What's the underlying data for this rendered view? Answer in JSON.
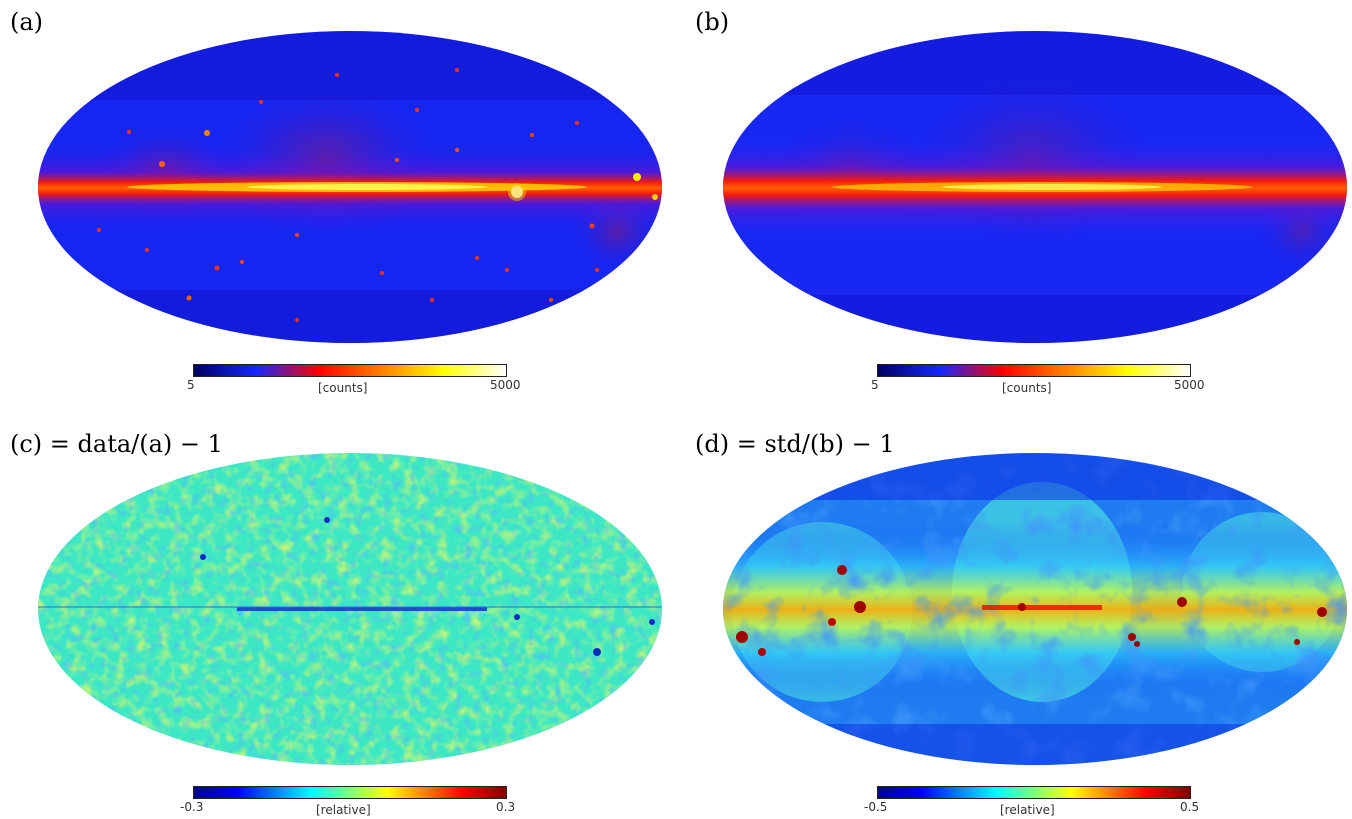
{
  "panels": {
    "a": {
      "title": "(a)",
      "colorbar": {
        "min": "5",
        "max": "5000",
        "unit": "[counts]",
        "scale": "log",
        "colormap": "heat"
      }
    },
    "b": {
      "title": "(b)",
      "colorbar": {
        "min": "5",
        "max": "5000",
        "unit": "[counts]",
        "scale": "log",
        "colormap": "heat"
      }
    },
    "c": {
      "title": "(c) = data/(a) − 1",
      "colorbar": {
        "min": "-0.3",
        "max": "0.3",
        "unit": "[relative]",
        "scale": "linear",
        "colormap": "jet"
      }
    },
    "d": {
      "title": "(d) = std/(b) − 1",
      "colorbar": {
        "min": "-0.5",
        "max": "0.5",
        "unit": "[relative]",
        "scale": "linear",
        "colormap": "jet"
      }
    }
  },
  "colors": {
    "heat": [
      "#000060",
      "#1428ff",
      "#ff0000",
      "#ff8000",
      "#ffff00",
      "#ffffff"
    ],
    "jet": [
      "#00008f",
      "#0000ff",
      "#00ffff",
      "#ffff00",
      "#ff0000",
      "#800000"
    ]
  }
}
